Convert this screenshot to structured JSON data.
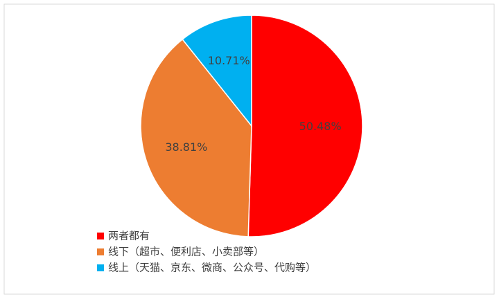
{
  "chart_data": {
    "type": "pie",
    "categories": [
      "两者都有",
      "线下（超市、便利店、小卖部等）",
      "线上（天猫、京东、微商、公众号、代购等）"
    ],
    "values": [
      50.48,
      38.81,
      10.71
    ],
    "value_labels": [
      "50.48%",
      "38.81%",
      "10.71%"
    ],
    "colors": [
      "#ff0000",
      "#ed7d31",
      "#00b0f0"
    ]
  }
}
